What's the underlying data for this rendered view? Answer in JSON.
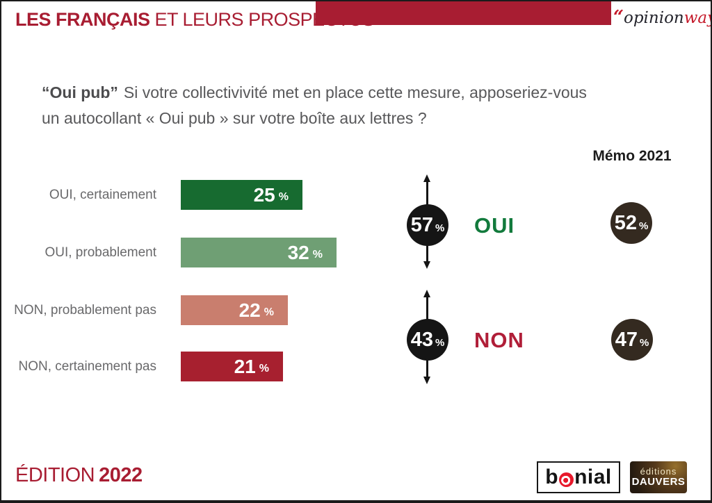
{
  "header": {
    "title_bold": "LES FRANÇAIS",
    "title_light": " ET LEURS PROSPECTUS",
    "brand": {
      "quote": "“",
      "dark": "opinion",
      "red": "way"
    }
  },
  "question": {
    "lead": "“Oui pub”",
    "line1": "Si votre collectivivité met en place cette mesure, apposeriez-vous",
    "line2": "un autocollant « Oui pub » sur votre boîte aux lettres ?"
  },
  "labels": {
    "percent": "%",
    "memo_title": "Mémo 2021"
  },
  "chart_data": {
    "type": "bar",
    "title": "“Oui pub” Si votre collectivivité met en place cette mesure, apposeriez-vous un autocollant « Oui pub » sur votre boîte aux lettres ?",
    "unit": "%",
    "bars": [
      {
        "label": "OUI, certainement",
        "value": 25,
        "color": "#176b30"
      },
      {
        "label": "OUI, probablement",
        "value": 32,
        "color": "#6f9f74"
      },
      {
        "label": "NON, probablement pas",
        "value": 22,
        "color": "#c97e6e"
      },
      {
        "label": "NON, certainement pas",
        "value": 21,
        "color": "#a7202f"
      }
    ],
    "aggregates": [
      {
        "label": "OUI",
        "value": 57,
        "label_color": "#127a3c"
      },
      {
        "label": "NON",
        "value": 43,
        "label_color": "#b01e38"
      }
    ],
    "memo_2021": {
      "title": "Mémo 2021",
      "values": [
        52,
        47
      ]
    }
  },
  "footer": {
    "edition_label": "ÉDITION",
    "edition_year": "2022",
    "logos": {
      "bonial_b": "b",
      "bonial_rest": "nial",
      "dauvers_top": "éditions",
      "dauvers_bottom": "DAUVERS"
    }
  }
}
